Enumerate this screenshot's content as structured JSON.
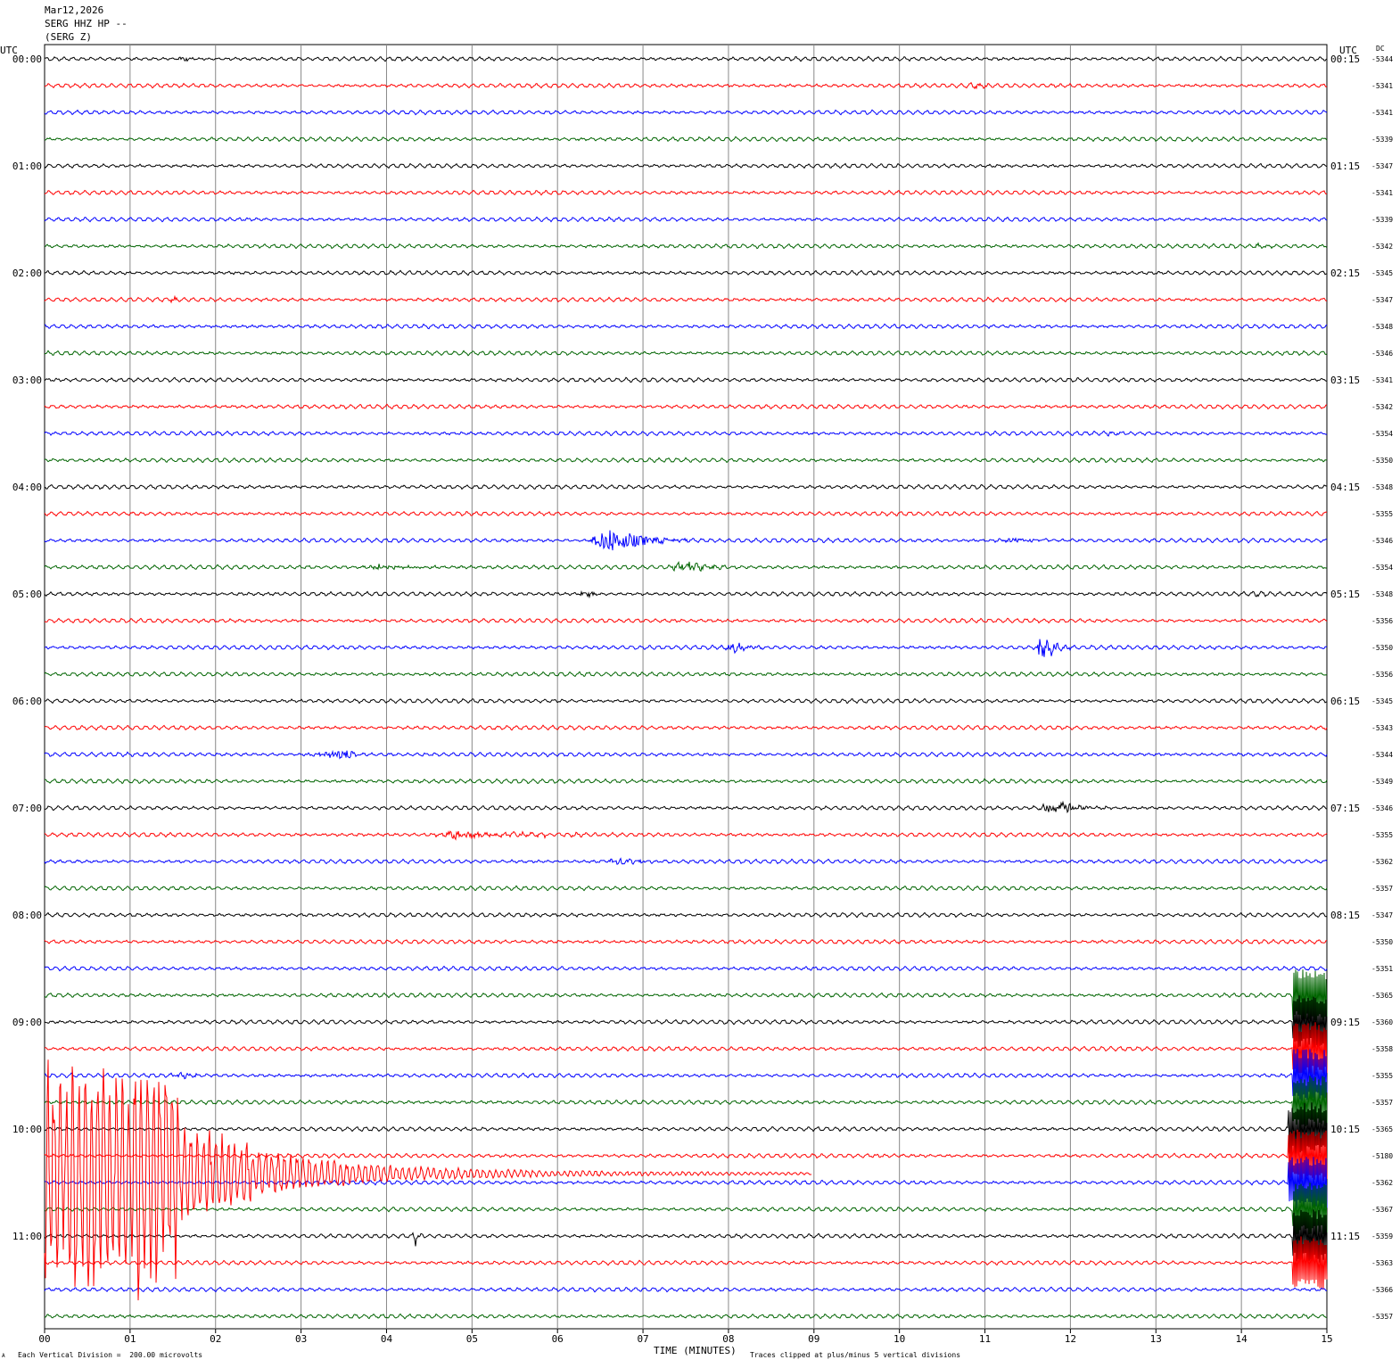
{
  "header": {
    "date": "Mar12,2026",
    "station": "SERG HHZ HP --",
    "component": "(SERG Z)"
  },
  "chart_data": {
    "type": "line",
    "title": "",
    "xlabel": "TIME (MINUTES)",
    "left_axis_title": "UTC",
    "right_axis_title": "UTC",
    "dc_title": "DC",
    "xlim": [
      0,
      15
    ],
    "x_ticks": [
      "00",
      "01",
      "02",
      "03",
      "04",
      "05",
      "06",
      "07",
      "08",
      "09",
      "10",
      "11",
      "12",
      "13",
      "14",
      "15"
    ],
    "trace_minutes": 15,
    "grid": true,
    "trace_colors": [
      "#000000",
      "#ff0000",
      "#0000ff",
      "#006400"
    ],
    "left_labels": [
      "00:00",
      "01:00",
      "02:00",
      "03:00",
      "04:00",
      "05:00",
      "06:00",
      "07:00",
      "08:00",
      "09:00",
      "10:00",
      "11:00"
    ],
    "right_labels": [
      "00:15",
      "01:15",
      "02:15",
      "03:15",
      "04:15",
      "05:15",
      "06:15",
      "07:15",
      "08:15",
      "09:15",
      "10:15",
      "11:15"
    ],
    "dc_offsets": [
      "-5344",
      "-5341",
      "-5341",
      "-5339",
      "-5347",
      "-5341",
      "-5339",
      "-5342",
      "-5345",
      "-5347",
      "-5348",
      "-5346",
      "-5341",
      "-5342",
      "-5354",
      "-5350",
      "-5348",
      "-5355",
      "-5346",
      "-5354",
      "-5348",
      "-5356",
      "-5350",
      "-5356",
      "-5345",
      "-5343",
      "-5344",
      "-5349",
      "-5346",
      "-5355",
      "-5362",
      "-5357",
      "-5347",
      "-5350",
      "-5351",
      "-5365",
      "-5360",
      "-5358",
      "-5355",
      "-5357",
      "-5365",
      "-5180",
      "-5362",
      "-5367",
      "-5359",
      "-5363",
      "-5366",
      "-5357"
    ],
    "events": [
      {
        "row": 0,
        "start_min": 1.5,
        "end_min": 2.0,
        "amp": 2
      },
      {
        "row": 1,
        "start_min": 10.7,
        "end_min": 11.4,
        "amp": 2
      },
      {
        "row": 7,
        "start_min": 14.1,
        "end_min": 14.5,
        "amp": 2
      },
      {
        "row": 9,
        "start_min": 1.45,
        "end_min": 1.6,
        "amp": 5
      },
      {
        "row": 14,
        "start_min": 12.3,
        "end_min": 13.0,
        "amp": 2
      },
      {
        "row": 18,
        "start_min": 6.35,
        "end_min": 7.7,
        "amp": 14,
        "peak_min": 6.6
      },
      {
        "row": 18,
        "start_min": 11.0,
        "end_min": 12.4,
        "amp": 3
      },
      {
        "row": 19,
        "start_min": 3.6,
        "end_min": 5.0,
        "amp": 3
      },
      {
        "row": 19,
        "start_min": 7.3,
        "end_min": 8.1,
        "amp": 6
      },
      {
        "row": 20,
        "start_min": 6.2,
        "end_min": 6.7,
        "amp": 3
      },
      {
        "row": 20,
        "start_min": 14.1,
        "end_min": 14.4,
        "amp": 2
      },
      {
        "row": 22,
        "start_min": 7.9,
        "end_min": 8.6,
        "amp": 5
      },
      {
        "row": 22,
        "start_min": 11.6,
        "end_min": 12.0,
        "amp": 24,
        "peak_min": 11.65
      },
      {
        "row": 26,
        "start_min": 3.0,
        "end_min": 4.0,
        "amp": 5,
        "peak_min": 3.55
      },
      {
        "row": 28,
        "start_min": 11.5,
        "end_min": 12.5,
        "amp": 6,
        "peak_min": 11.9
      },
      {
        "row": 29,
        "start_min": 4.5,
        "end_min": 7.0,
        "amp": 4,
        "peak_min": 4.8
      },
      {
        "row": 30,
        "start_min": 6.5,
        "end_min": 7.4,
        "amp": 4
      },
      {
        "row": 38,
        "start_min": 1.4,
        "end_min": 2.1,
        "amp": 3
      },
      {
        "row": 44,
        "start_min": 4.3,
        "end_min": 4.45,
        "amp": 10
      }
    ],
    "clipped": [
      {
        "row": 35,
        "start_min": 14.6,
        "end_min": 15.0
      },
      {
        "row": 36,
        "start_min": 14.6,
        "end_min": 15.0
      },
      {
        "row": 37,
        "start_min": 14.6,
        "end_min": 15.0
      },
      {
        "row": 38,
        "start_min": 14.6,
        "end_min": 15.0
      },
      {
        "row": 39,
        "start_min": 14.6,
        "end_min": 15.0
      },
      {
        "row": 40,
        "start_min": 14.55,
        "end_min": 15.0
      },
      {
        "row": 41,
        "start_min": 14.55,
        "end_min": 15.0
      },
      {
        "row": 42,
        "start_min": 14.55,
        "end_min": 15.0
      },
      {
        "row": 43,
        "start_min": 14.6,
        "end_min": 15.0
      },
      {
        "row": 44,
        "start_min": 14.6,
        "end_min": 15.0
      },
      {
        "row": 45,
        "start_min": 14.6,
        "end_min": 15.0
      }
    ],
    "earthquake_rows": [
      36,
      37,
      38,
      39,
      40,
      41,
      42,
      43,
      44,
      45,
      46
    ],
    "clip_divisions": 5
  },
  "footer": {
    "scale_note": "Each Vertical Division =  200.00 microvolts",
    "clip_note": "Traces clipped at plus/minus 5 vertical divisions",
    "logo_mark": "A"
  }
}
